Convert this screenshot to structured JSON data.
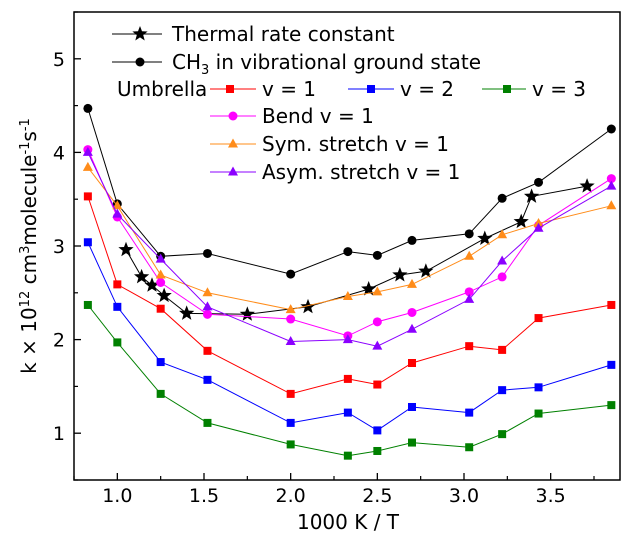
{
  "chart_data": {
    "type": "line",
    "xlabel": "1000 K / T",
    "ylabel_parts": {
      "p1": "k × 10",
      "p1_sup": "12",
      "p2": " cm",
      "p2_sup": "3",
      "p3": "molecule",
      "p3_sup": "-1",
      "p4": "s",
      "p4_sup": "-1"
    },
    "xlim": [
      0.75,
      3.9
    ],
    "ylim": [
      0.5,
      5.5
    ],
    "x_ticks": [
      1.0,
      1.5,
      2.0,
      2.5,
      3.0,
      3.5
    ],
    "x_tick_labels": [
      "1.0",
      "1.5",
      "2.0",
      "2.5",
      "3.0",
      "3.5"
    ],
    "y_ticks": [
      1,
      2,
      3,
      4,
      5
    ],
    "y_tick_labels": [
      "1",
      "2",
      "3",
      "4",
      "5"
    ],
    "grid": false,
    "legend": {
      "thermal": "Thermal rate constant",
      "ground_prefix": "CH",
      "ground_sub": "3",
      "ground_suffix": " in vibrational ground state",
      "umbrella_label": "Umbrella",
      "u1": "v = 1",
      "u2": "v = 2",
      "u3": "v = 3",
      "bend": "Bend v = 1",
      "sym": "Sym. stretch v = 1",
      "asym": "Asym. stretch v = 1"
    },
    "series": [
      {
        "id": "ground",
        "color": "#000000",
        "marker": "circle",
        "x": [
          0.83,
          1.0,
          1.25,
          1.52,
          2.0,
          2.33,
          2.5,
          2.7,
          3.03,
          3.22,
          3.43,
          3.85
        ],
        "y": [
          4.47,
          3.45,
          2.89,
          2.92,
          2.7,
          2.94,
          2.9,
          3.06,
          3.13,
          3.51,
          3.68,
          4.25
        ]
      },
      {
        "id": "thermal",
        "color": "#000000",
        "marker": "star",
        "x": [
          1.05,
          1.14,
          1.2,
          1.27,
          1.4,
          1.75,
          2.1,
          2.45,
          2.63,
          2.78,
          3.12,
          3.33,
          3.39,
          3.71
        ],
        "y": [
          2.96,
          2.67,
          2.58,
          2.47,
          2.28,
          2.27,
          2.35,
          2.54,
          2.69,
          2.73,
          3.08,
          3.26,
          3.53,
          3.64
        ]
      },
      {
        "id": "umbrella_v1",
        "color": "#ff0000",
        "marker": "square",
        "x": [
          0.83,
          1.0,
          1.25,
          1.52,
          2.0,
          2.33,
          2.5,
          2.7,
          3.03,
          3.22,
          3.43,
          3.85
        ],
        "y": [
          3.53,
          2.59,
          2.33,
          1.88,
          1.42,
          1.58,
          1.52,
          1.75,
          1.93,
          1.89,
          2.23,
          2.37
        ]
      },
      {
        "id": "umbrella_v2",
        "color": "#0000ff",
        "marker": "square",
        "x": [
          0.83,
          1.0,
          1.25,
          1.52,
          2.0,
          2.33,
          2.5,
          2.7,
          3.03,
          3.22,
          3.43,
          3.85
        ],
        "y": [
          3.04,
          2.35,
          1.76,
          1.57,
          1.11,
          1.22,
          1.03,
          1.28,
          1.22,
          1.46,
          1.49,
          1.73
        ]
      },
      {
        "id": "umbrella_v3",
        "color": "#008000",
        "marker": "square",
        "x": [
          0.83,
          1.0,
          1.25,
          1.52,
          2.0,
          2.33,
          2.5,
          2.7,
          3.03,
          3.22,
          3.43,
          3.85
        ],
        "y": [
          2.37,
          1.97,
          1.42,
          1.11,
          0.88,
          0.76,
          0.81,
          0.9,
          0.85,
          0.99,
          1.21,
          1.3
        ]
      },
      {
        "id": "bend",
        "color": "#ff00ff",
        "marker": "circle",
        "x": [
          0.83,
          1.0,
          1.25,
          1.52,
          2.0,
          2.33,
          2.5,
          2.7,
          3.03,
          3.22,
          3.43,
          3.85
        ],
        "y": [
          4.03,
          3.31,
          2.61,
          2.27,
          2.22,
          2.04,
          2.19,
          2.29,
          2.51,
          2.67,
          3.22,
          3.72
        ]
      },
      {
        "id": "sym",
        "color": "#ff8c1a",
        "marker": "triangle",
        "x": [
          0.83,
          1.0,
          1.25,
          1.52,
          2.0,
          2.33,
          2.5,
          2.7,
          3.03,
          3.22,
          3.43,
          3.85
        ],
        "y": [
          3.84,
          3.43,
          2.69,
          2.5,
          2.32,
          2.46,
          2.51,
          2.59,
          2.89,
          3.12,
          3.24,
          3.43
        ]
      },
      {
        "id": "asym",
        "color": "#8b00ff",
        "marker": "triangle",
        "x": [
          0.83,
          1.0,
          1.25,
          1.52,
          2.0,
          2.33,
          2.5,
          2.7,
          3.03,
          3.22,
          3.43,
          3.85
        ],
        "y": [
          4.0,
          3.34,
          2.86,
          2.35,
          1.98,
          2.0,
          1.93,
          2.11,
          2.43,
          2.84,
          3.19,
          3.64
        ]
      }
    ]
  }
}
